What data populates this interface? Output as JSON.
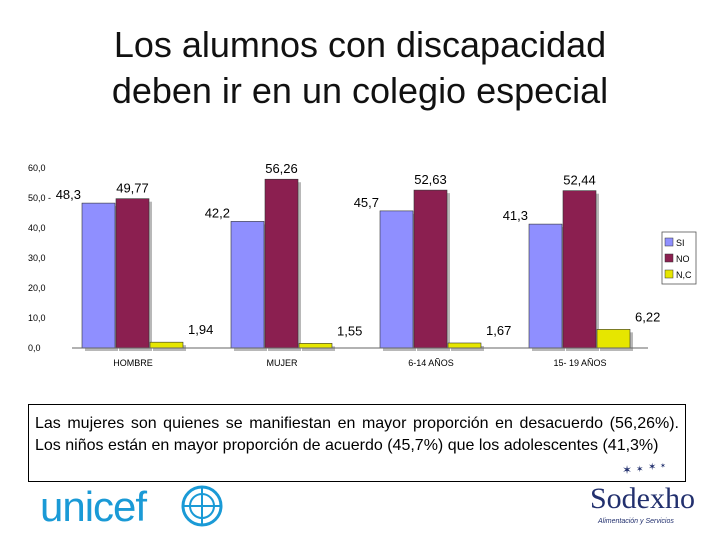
{
  "title": {
    "line1": "Los alumnos con discapacidad",
    "line2": "deben ir en un colegio especial"
  },
  "chart_data": {
    "type": "bar",
    "categories": [
      "HOMBRE",
      "MUJER",
      "6-14 AÑOS",
      "15- 19 AÑOS"
    ],
    "series": [
      {
        "name": "SI",
        "color": "#8f8fff",
        "values": [
          48.3,
          42.2,
          45.7,
          41.3
        ],
        "labels": [
          "48,3",
          "42,2",
          "45,7",
          "41,3"
        ]
      },
      {
        "name": "NO",
        "color": "#8b1f50",
        "values": [
          49.77,
          56.26,
          52.63,
          52.44
        ],
        "labels": [
          "49,77",
          "56,26",
          "52,63",
          "52,44"
        ]
      },
      {
        "name": "N,C",
        "color": "#e6e600",
        "values": [
          1.94,
          1.55,
          1.67,
          6.22
        ],
        "labels": [
          "1,94",
          "1,55",
          "1,67",
          "6,22"
        ]
      }
    ],
    "yticks": [
      "60,0",
      "50,0 -",
      "40,0",
      "30,0",
      "20,0",
      "10,0",
      "0,0"
    ],
    "ylim": [
      0,
      60
    ],
    "legend_position": "right"
  },
  "note": {
    "text": "Las mujeres son quienes se manifiestan en mayor proporción en desacuerdo (56,26%). Los niños están en mayor proporción de acuerdo (45,7%) que los adolescentes (41,3%)"
  },
  "logos": {
    "unicef": "unicef",
    "sodexho": "Sodexho",
    "sodexho_tagline": "Alimentación y Servicios"
  }
}
